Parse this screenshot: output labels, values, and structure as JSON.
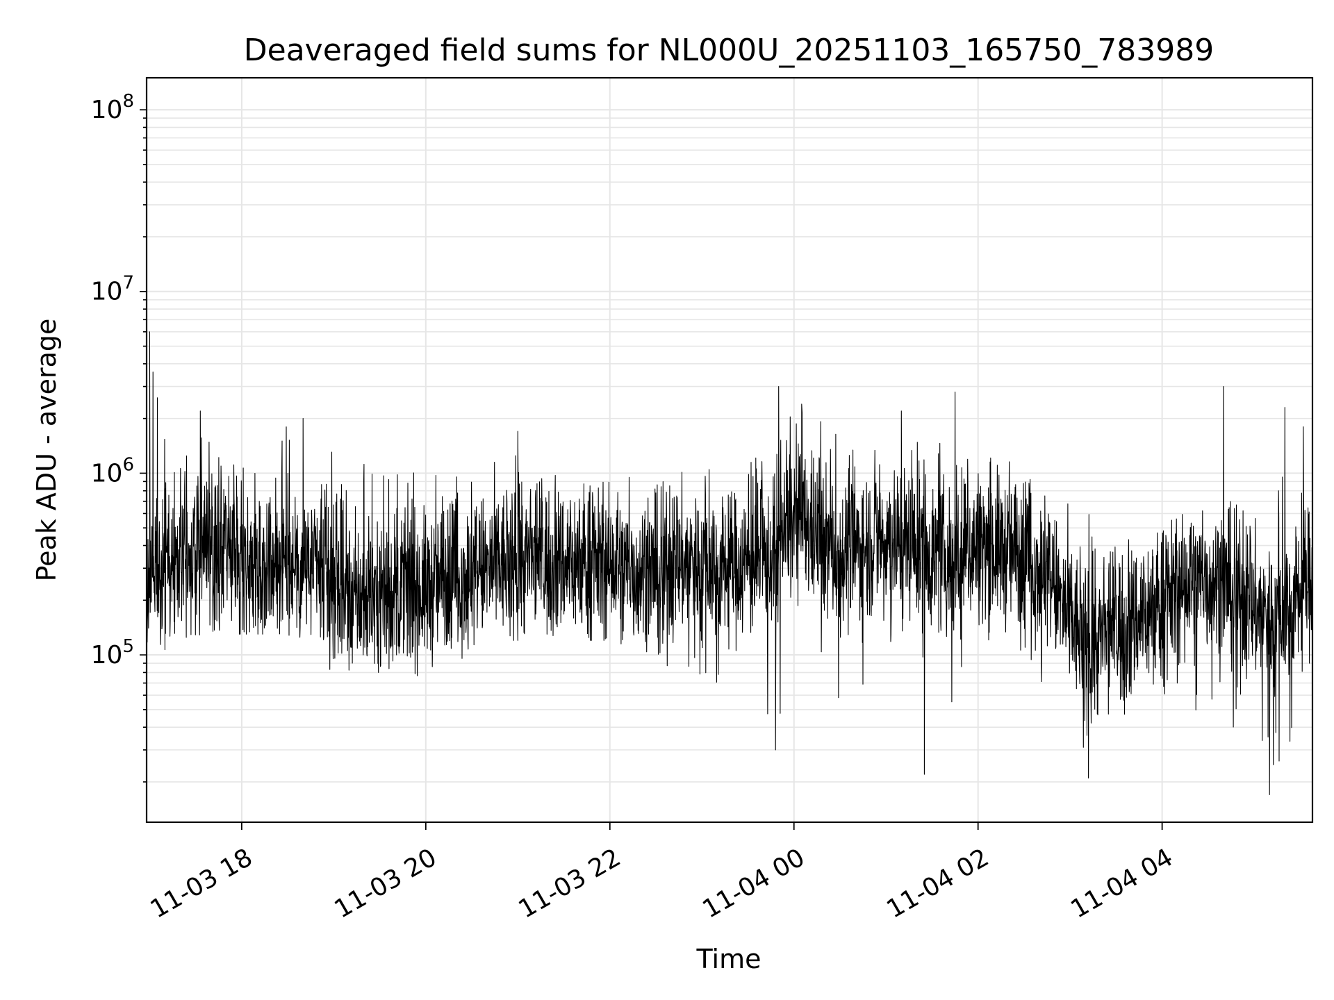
{
  "chart_data": {
    "type": "line",
    "title": "Deaveraged field sums for NL000U_20251103_165750_783989",
    "xlabel": "Time",
    "ylabel": "Peak ADU - average",
    "y_scale": "log",
    "ylim": [
      12000,
      150000000
    ],
    "xlim": [
      "2025-11-03 16:58:00",
      "2025-11-04 05:38:00"
    ],
    "x_ticks": [
      {
        "value": "2025-11-03 18:00",
        "label": "11-03 18"
      },
      {
        "value": "2025-11-03 20:00",
        "label": "11-03 20"
      },
      {
        "value": "2025-11-03 22:00",
        "label": "11-03 22"
      },
      {
        "value": "2025-11-04 00:00",
        "label": "11-04 00"
      },
      {
        "value": "2025-11-04 02:00",
        "label": "11-04 02"
      },
      {
        "value": "2025-11-04 04:00",
        "label": "11-04 04"
      }
    ],
    "y_ticks": [
      {
        "value": 100000,
        "base": "10",
        "exp": "5"
      },
      {
        "value": 1000000,
        "base": "10",
        "exp": "6"
      },
      {
        "value": 10000000,
        "base": "10",
        "exp": "7"
      },
      {
        "value": 100000000,
        "base": "10",
        "exp": "8"
      }
    ],
    "grid": true,
    "series_color": "#000000",
    "series": [
      {
        "x": [
          "2025-11-03 16:58",
          "2025-11-03 17:15",
          "2025-11-03 17:30",
          "2025-11-03 17:45",
          "2025-11-03 18:00",
          "2025-11-03 18:15",
          "2025-11-03 18:30",
          "2025-11-03 18:45",
          "2025-11-03 19:00",
          "2025-11-03 19:15",
          "2025-11-03 19:30",
          "2025-11-03 19:45",
          "2025-11-03 20:00",
          "2025-11-03 20:15",
          "2025-11-03 20:30",
          "2025-11-03 20:45",
          "2025-11-03 21:00",
          "2025-11-03 21:15",
          "2025-11-03 21:30",
          "2025-11-03 21:45",
          "2025-11-03 22:00",
          "2025-11-03 22:15",
          "2025-11-03 22:30",
          "2025-11-03 22:45",
          "2025-11-03 23:00",
          "2025-11-03 23:15",
          "2025-11-03 23:30",
          "2025-11-03 23:45",
          "2025-11-04 00:00",
          "2025-11-04 00:15",
          "2025-11-04 00:30",
          "2025-11-04 00:45",
          "2025-11-04 01:00",
          "2025-11-04 01:15",
          "2025-11-04 01:30",
          "2025-11-04 01:45",
          "2025-11-04 02:00",
          "2025-11-04 02:15",
          "2025-11-04 02:30",
          "2025-11-04 02:45",
          "2025-11-04 03:00",
          "2025-11-04 03:15",
          "2025-11-04 03:30",
          "2025-11-04 03:45",
          "2025-11-04 04:00",
          "2025-11-04 04:15",
          "2025-11-04 04:30",
          "2025-11-04 04:45",
          "2025-11-04 05:00",
          "2025-11-04 05:15",
          "2025-11-04 05:30",
          "2025-11-04 05:38"
        ],
        "lower": [
          80000,
          100000,
          120000,
          130000,
          130000,
          130000,
          130000,
          100000,
          80000,
          80000,
          80000,
          90000,
          70000,
          90000,
          100000,
          120000,
          120000,
          120000,
          120000,
          120000,
          120000,
          110000,
          100000,
          70000,
          70000,
          60000,
          50000,
          30000,
          60000,
          50000,
          50000,
          60000,
          80000,
          70000,
          30000,
          60000,
          80000,
          60000,
          70000,
          60000,
          40000,
          22000,
          40000,
          40000,
          40000,
          50000,
          40000,
          35000,
          30000,
          20000,
          40000,
          60000
        ],
        "upper": [
          6000000,
          1300000,
          1800000,
          1400000,
          1100000,
          1500000,
          1900000,
          1600000,
          1300000,
          1200000,
          1000000,
          1100000,
          1000000,
          1100000,
          1000000,
          1200000,
          1300000,
          1200000,
          1100000,
          1000000,
          900000,
          1000000,
          900000,
          1100000,
          1200000,
          1300000,
          1200000,
          1300000,
          2500000,
          2000000,
          1600000,
          1700000,
          1500000,
          1800000,
          1400000,
          1800000,
          1200000,
          1300000,
          1100000,
          800000,
          700000,
          600000,
          500000,
          500000,
          550000,
          600000,
          650000,
          700000,
          800000,
          1100000,
          1600000,
          1400000
        ],
        "typical": [
          280000,
          320000,
          400000,
          380000,
          300000,
          330000,
          330000,
          310000,
          220000,
          200000,
          220000,
          230000,
          230000,
          270000,
          280000,
          300000,
          320000,
          330000,
          320000,
          320000,
          310000,
          290000,
          280000,
          320000,
          330000,
          300000,
          320000,
          330000,
          550000,
          450000,
          350000,
          400000,
          450000,
          420000,
          350000,
          330000,
          400000,
          380000,
          350000,
          280000,
          150000,
          110000,
          140000,
          160000,
          190000,
          240000,
          260000,
          230000,
          180000,
          160000,
          220000,
          280000
        ],
        "spikes": [
          {
            "x": "2025-11-03 17:00",
            "y": 6000000
          },
          {
            "x": "2025-11-03 17:05",
            "y": 2600000
          },
          {
            "x": "2025-11-03 17:33",
            "y": 2200000
          },
          {
            "x": "2025-11-03 18:40",
            "y": 2000000
          },
          {
            "x": "2025-11-03 21:00",
            "y": 1700000
          },
          {
            "x": "2025-11-03 23:50",
            "y": 3000000
          },
          {
            "x": "2025-11-04 00:05",
            "y": 2400000
          },
          {
            "x": "2025-11-04 01:10",
            "y": 2200000
          },
          {
            "x": "2025-11-04 01:45",
            "y": 2800000
          },
          {
            "x": "2025-11-04 04:40",
            "y": 3000000
          },
          {
            "x": "2025-11-04 05:20",
            "y": 2300000
          },
          {
            "x": "2025-11-04 05:32",
            "y": 1800000
          },
          {
            "x": "2025-11-03 23:48",
            "y": 30000
          },
          {
            "x": "2025-11-04 01:25",
            "y": 22000
          },
          {
            "x": "2025-11-04 03:12",
            "y": 21000
          },
          {
            "x": "2025-11-04 05:10",
            "y": 17000
          }
        ]
      }
    ]
  }
}
